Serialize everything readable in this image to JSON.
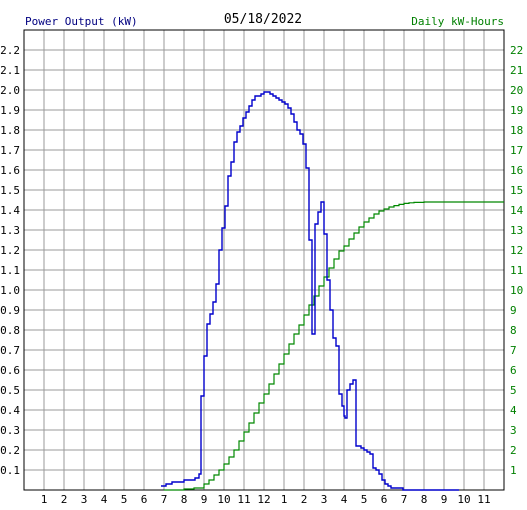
{
  "chart_data": {
    "type": "line",
    "title": "05/18/2022",
    "ylabel_left": "Power Output (kW)",
    "ylabel_right": "Daily kW-Hours",
    "x_ticks": [
      "1",
      "2",
      "3",
      "4",
      "5",
      "6",
      "7",
      "8",
      "9",
      "10",
      "11",
      "12",
      "1",
      "2",
      "3",
      "4",
      "5",
      "6",
      "7",
      "8",
      "9",
      "10",
      "11"
    ],
    "xlim": [
      0,
      24
    ],
    "ylim_left": [
      0,
      2.3
    ],
    "ylim_right": [
      0,
      23
    ],
    "y_ticks_left": [
      "0.1",
      "0.2",
      "0.3",
      "0.4",
      "0.5",
      "0.6",
      "0.7",
      "0.8",
      "0.9",
      "1.0",
      "1.1",
      "1.2",
      "1.3",
      "1.4",
      "1.5",
      "1.6",
      "1.7",
      "1.8",
      "1.9",
      "2.0",
      "2.1",
      "2.2"
    ],
    "y_ticks_right": [
      "1",
      "2",
      "3",
      "4",
      "5",
      "6",
      "7",
      "8",
      "9",
      "10",
      "11",
      "12",
      "13",
      "14",
      "15",
      "16",
      "17",
      "18",
      "19",
      "20",
      "21",
      "22"
    ],
    "grid": true,
    "colors": {
      "power": "#0000cc",
      "energy": "#008800",
      "left_axis_text": "#000080",
      "right_axis_text": "#008000",
      "grid": "#999999"
    },
    "series": [
      {
        "axis": "left",
        "step": true,
        "x": [
          6.85,
          7.1,
          7.4,
          7.7,
          8.0,
          8.3,
          8.55,
          8.75,
          8.85,
          9.0,
          9.15,
          9.3,
          9.45,
          9.6,
          9.75,
          9.9,
          10.05,
          10.2,
          10.35,
          10.5,
          10.65,
          10.8,
          10.95,
          11.1,
          11.25,
          11.4,
          11.55,
          11.7,
          11.85,
          12.0,
          12.15,
          12.3,
          12.45,
          12.6,
          12.75,
          12.9,
          13.05,
          13.2,
          13.35,
          13.5,
          13.65,
          13.8,
          13.95,
          14.1,
          14.25,
          14.4,
          14.55,
          14.7,
          14.85,
          15.0,
          15.15,
          15.3,
          15.45,
          15.6,
          15.75,
          15.9,
          16.0,
          16.05,
          16.15,
          16.3,
          16.45,
          16.6,
          16.7,
          16.85,
          17.0,
          17.15,
          17.3,
          17.45,
          17.6,
          17.75,
          17.9,
          18.05,
          18.2,
          18.35,
          18.5,
          18.65,
          18.8,
          18.95,
          19.1,
          19.25,
          19.4,
          19.55,
          19.7,
          19.85,
          20.0,
          20.15,
          20.3,
          20.45,
          20.6,
          20.75,
          20.9,
          21.05,
          21.2,
          21.4,
          21.6
        ],
        "values": [
          0.02,
          0.03,
          0.04,
          0.04,
          0.05,
          0.05,
          0.06,
          0.08,
          0.47,
          0.67,
          0.83,
          0.88,
          0.94,
          1.03,
          1.2,
          1.31,
          1.42,
          1.57,
          1.64,
          1.74,
          1.79,
          1.82,
          1.86,
          1.89,
          1.92,
          1.95,
          1.97,
          1.97,
          1.98,
          1.99,
          1.99,
          1.98,
          1.97,
          1.96,
          1.95,
          1.94,
          1.93,
          1.91,
          1.88,
          1.84,
          1.8,
          1.78,
          1.73,
          1.61,
          1.25,
          0.78,
          1.33,
          1.39,
          1.44,
          1.28,
          1.05,
          0.9,
          0.76,
          0.72,
          0.48,
          0.42,
          0.37,
          0.36,
          0.5,
          0.53,
          0.55,
          0.22,
          0.22,
          0.21,
          0.2,
          0.19,
          0.18,
          0.11,
          0.1,
          0.08,
          0.05,
          0.03,
          0.02,
          0.01,
          0.01,
          0.01,
          0.01,
          0.0,
          0.0,
          0.0,
          0.0,
          0.0,
          0.0,
          0.0,
          0.0,
          0.0,
          0.0,
          0.0,
          0.0,
          0.0,
          0.0,
          0.0,
          0.0,
          0.0,
          0.0
        ]
      },
      {
        "axis": "right",
        "step": true,
        "x": [
          7.0,
          8.0,
          8.5,
          9.0,
          9.25,
          9.5,
          9.75,
          10.0,
          10.25,
          10.5,
          10.75,
          11.0,
          11.25,
          11.5,
          11.75,
          12.0,
          12.25,
          12.5,
          12.75,
          13.0,
          13.25,
          13.5,
          13.75,
          14.0,
          14.25,
          14.5,
          14.75,
          15.0,
          15.25,
          15.5,
          15.75,
          16.0,
          16.25,
          16.5,
          16.75,
          17.0,
          17.25,
          17.5,
          17.75,
          18.0,
          18.25,
          18.5,
          18.75,
          19.0,
          19.25,
          19.5,
          20.0,
          20.5,
          21.0,
          22.0,
          23.0,
          24.0
        ],
        "values": [
          0.0,
          0.05,
          0.1,
          0.3,
          0.5,
          0.75,
          1.0,
          1.3,
          1.65,
          2.0,
          2.45,
          2.9,
          3.35,
          3.85,
          4.35,
          4.8,
          5.3,
          5.8,
          6.3,
          6.8,
          7.3,
          7.8,
          8.25,
          8.75,
          9.25,
          9.7,
          10.2,
          10.65,
          11.1,
          11.55,
          11.95,
          12.2,
          12.55,
          12.85,
          13.15,
          13.4,
          13.6,
          13.8,
          13.95,
          14.05,
          14.15,
          14.22,
          14.28,
          14.33,
          14.36,
          14.38,
          14.4,
          14.4,
          14.4,
          14.4,
          14.4,
          14.4
        ]
      }
    ]
  }
}
